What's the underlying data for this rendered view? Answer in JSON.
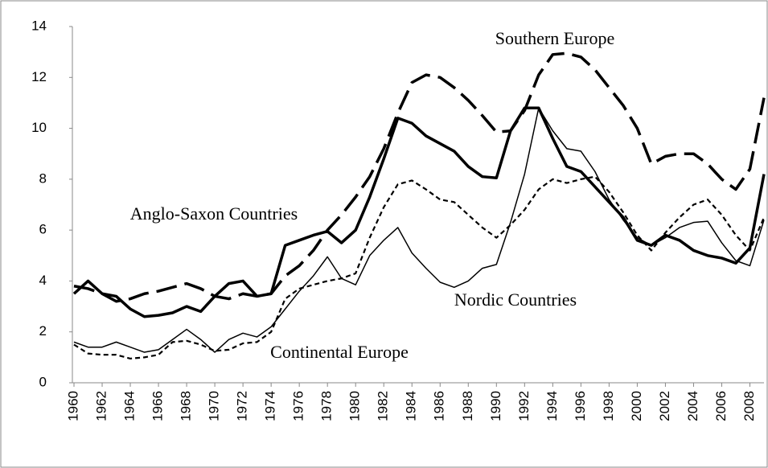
{
  "chart_data": {
    "type": "line",
    "x": [
      1960,
      1961,
      1962,
      1963,
      1964,
      1965,
      1966,
      1967,
      1968,
      1969,
      1970,
      1971,
      1972,
      1973,
      1974,
      1975,
      1976,
      1977,
      1978,
      1979,
      1980,
      1981,
      1982,
      1983,
      1984,
      1985,
      1986,
      1987,
      1988,
      1989,
      1990,
      1991,
      1992,
      1993,
      1994,
      1995,
      1996,
      1997,
      1998,
      1999,
      2000,
      2001,
      2002,
      2003,
      2004,
      2005,
      2006,
      2007,
      2008,
      2009
    ],
    "xlim": [
      1960,
      2009
    ],
    "xticks": [
      1960,
      1962,
      1964,
      1966,
      1968,
      1970,
      1972,
      1974,
      1976,
      1978,
      1980,
      1982,
      1984,
      1986,
      1988,
      1990,
      1992,
      1994,
      1996,
      1998,
      2000,
      2002,
      2004,
      2006,
      2008
    ],
    "ylim": [
      0,
      14
    ],
    "yticks": [
      0,
      2,
      4,
      6,
      8,
      10,
      12,
      14
    ],
    "grid": false,
    "series": [
      {
        "name": "Southern Europe",
        "color": "#000000",
        "dash": "long",
        "weight": "thick",
        "values": [
          3.8,
          3.7,
          3.5,
          3.2,
          3.3,
          3.5,
          3.6,
          3.75,
          3.9,
          3.7,
          3.4,
          3.3,
          3.5,
          3.4,
          3.5,
          4.2,
          4.6,
          5.2,
          6.0,
          6.6,
          7.3,
          8.1,
          9.2,
          10.6,
          11.8,
          12.1,
          12.0,
          11.6,
          11.1,
          10.5,
          9.85,
          9.9,
          10.7,
          12.1,
          12.9,
          12.95,
          12.8,
          12.3,
          11.6,
          10.9,
          10.0,
          8.6,
          8.9,
          9.0,
          9.0,
          8.6,
          8.0,
          7.6,
          8.4,
          11.2
        ]
      },
      {
        "name": "Anglo-Saxon Countries",
        "color": "#000000",
        "dash": "solid",
        "weight": "thick",
        "values": [
          3.5,
          4.0,
          3.5,
          3.4,
          2.9,
          2.6,
          2.65,
          2.75,
          3.0,
          2.8,
          3.4,
          3.9,
          4.0,
          3.4,
          3.5,
          5.4,
          5.6,
          5.8,
          5.95,
          5.5,
          6.0,
          7.3,
          8.8,
          10.4,
          10.2,
          9.7,
          9.4,
          9.1,
          8.5,
          8.1,
          8.05,
          9.9,
          10.8,
          10.8,
          9.6,
          8.5,
          8.3,
          7.7,
          7.1,
          6.5,
          5.6,
          5.4,
          5.8,
          5.6,
          5.2,
          5.0,
          4.9,
          4.7,
          5.3,
          8.2
        ]
      },
      {
        "name": "Nordic Countries",
        "color": "#000000",
        "dash": "solid",
        "weight": "thin",
        "values": [
          1.6,
          1.4,
          1.4,
          1.6,
          1.4,
          1.2,
          1.3,
          1.7,
          2.1,
          1.7,
          1.2,
          1.7,
          1.95,
          1.8,
          2.2,
          2.9,
          3.6,
          4.2,
          4.95,
          4.1,
          3.85,
          5.0,
          5.6,
          6.1,
          5.1,
          4.5,
          3.95,
          3.75,
          4.0,
          4.5,
          4.65,
          6.3,
          8.2,
          10.8,
          9.9,
          9.2,
          9.1,
          8.3,
          7.2,
          6.4,
          5.7,
          5.4,
          5.7,
          6.1,
          6.3,
          6.35,
          5.5,
          4.8,
          4.6,
          6.4
        ]
      },
      {
        "name": "Continental Europe",
        "color": "#000000",
        "dash": "short",
        "weight": "medium",
        "values": [
          1.5,
          1.15,
          1.1,
          1.1,
          0.95,
          1.0,
          1.1,
          1.6,
          1.65,
          1.5,
          1.25,
          1.3,
          1.55,
          1.6,
          2.0,
          3.3,
          3.7,
          3.85,
          4.0,
          4.1,
          4.3,
          5.7,
          6.9,
          7.8,
          7.95,
          7.6,
          7.2,
          7.1,
          6.6,
          6.1,
          5.7,
          6.2,
          6.8,
          7.6,
          8.0,
          7.85,
          8.0,
          8.1,
          7.5,
          6.7,
          5.8,
          5.2,
          5.9,
          6.5,
          7.0,
          7.2,
          6.6,
          5.8,
          5.2,
          6.5
        ]
      }
    ]
  }
}
